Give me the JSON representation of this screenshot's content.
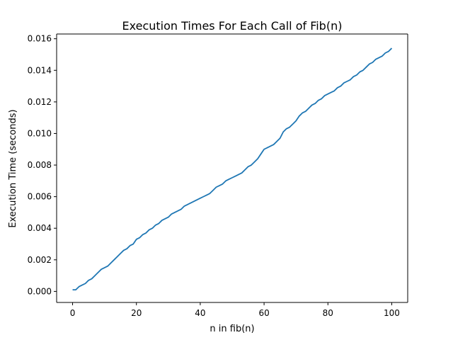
{
  "chart_data": {
    "type": "line",
    "title": "Execution Times For Each Call of Fib(n)",
    "xlabel": "n in fib(n)",
    "ylabel": "Execution Time (seconds)",
    "xlim": [
      -5,
      105
    ],
    "ylim": [
      -0.0007,
      0.0163
    ],
    "xticks": [
      0,
      20,
      40,
      60,
      80,
      100
    ],
    "xtick_labels": [
      "0",
      "20",
      "40",
      "60",
      "80",
      "100"
    ],
    "yticks": [
      0.0,
      0.002,
      0.004,
      0.006,
      0.008,
      0.01,
      0.012,
      0.014,
      0.016
    ],
    "ytick_labels": [
      "0.000",
      "0.002",
      "0.004",
      "0.006",
      "0.008",
      "0.010",
      "0.012",
      "0.014",
      "0.016"
    ],
    "grid": false,
    "legend": "none",
    "series": [
      {
        "color": "#1f77b4",
        "x": [
          0,
          1,
          2,
          3,
          4,
          5,
          6,
          7,
          8,
          9,
          10,
          11,
          12,
          13,
          14,
          15,
          16,
          17,
          18,
          19,
          20,
          21,
          22,
          23,
          24,
          25,
          26,
          27,
          28,
          29,
          30,
          31,
          32,
          33,
          34,
          35,
          36,
          37,
          38,
          39,
          40,
          41,
          42,
          43,
          44,
          45,
          46,
          47,
          48,
          49,
          50,
          51,
          52,
          53,
          54,
          55,
          56,
          57,
          58,
          59,
          60,
          61,
          62,
          63,
          64,
          65,
          66,
          67,
          68,
          69,
          70,
          71,
          72,
          73,
          74,
          75,
          76,
          77,
          78,
          79,
          80,
          81,
          82,
          83,
          84,
          85,
          86,
          87,
          88,
          89,
          90,
          91,
          92,
          93,
          94,
          95,
          96,
          97,
          98,
          99,
          100
        ],
        "y": [
          0.0001,
          0.0001,
          0.0003,
          0.0004,
          0.0005,
          0.0007,
          0.0008,
          0.001,
          0.0012,
          0.0014,
          0.0015,
          0.0016,
          0.0018,
          0.002,
          0.0022,
          0.0024,
          0.0026,
          0.0027,
          0.0029,
          0.003,
          0.0033,
          0.0034,
          0.0036,
          0.0037,
          0.0039,
          0.004,
          0.0042,
          0.0043,
          0.0045,
          0.0046,
          0.0047,
          0.0049,
          0.005,
          0.0051,
          0.0052,
          0.0054,
          0.0055,
          0.0056,
          0.0057,
          0.0058,
          0.0059,
          0.006,
          0.0061,
          0.0062,
          0.0064,
          0.0066,
          0.0067,
          0.0068,
          0.007,
          0.0071,
          0.0072,
          0.0073,
          0.0074,
          0.0075,
          0.0077,
          0.0079,
          0.008,
          0.0082,
          0.0084,
          0.0087,
          0.009,
          0.0091,
          0.0092,
          0.0093,
          0.0095,
          0.0097,
          0.0101,
          0.0103,
          0.0104,
          0.0106,
          0.0108,
          0.0111,
          0.0113,
          0.0114,
          0.0116,
          0.0118,
          0.0119,
          0.0121,
          0.0122,
          0.0124,
          0.0125,
          0.0126,
          0.0127,
          0.0129,
          0.013,
          0.0132,
          0.0133,
          0.0134,
          0.0136,
          0.0137,
          0.0139,
          0.014,
          0.0142,
          0.0144,
          0.0145,
          0.0147,
          0.0148,
          0.0149,
          0.0151,
          0.0152,
          0.0154
        ]
      }
    ]
  }
}
